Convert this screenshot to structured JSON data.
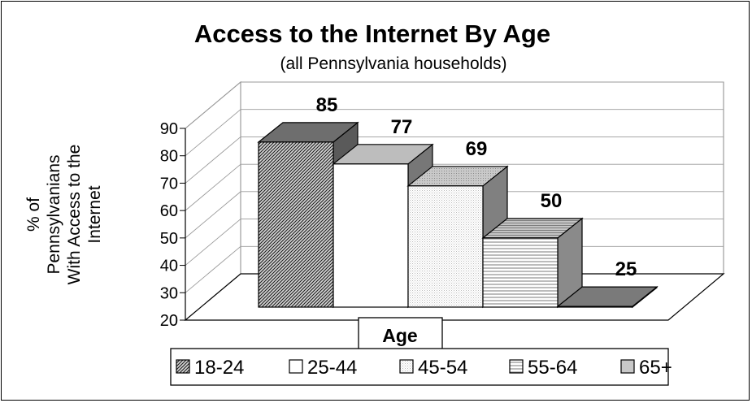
{
  "chart_data": {
    "type": "bar",
    "title": "Access to the Internet By Age",
    "subtitle": "(all Pennsylvania households)",
    "ylabel_lines": [
      "% of",
      "Pennsylvanians",
      "With Access to the",
      "Internet"
    ],
    "xlabel": "Age",
    "ylim": [
      20,
      90
    ],
    "yticks": [
      "20",
      "30",
      "40",
      "50",
      "60",
      "70",
      "80",
      "90"
    ],
    "grid": true,
    "legend_placement": "bottom",
    "series": [
      {
        "name": "18-24",
        "value": 85,
        "label": "85",
        "pattern": "diag",
        "top": "#6e6e6e",
        "side": "#5a5a5a"
      },
      {
        "name": "25-44",
        "value": 77,
        "label": "77",
        "pattern": "white",
        "top": "#bdbdbd",
        "side": "#777777"
      },
      {
        "name": "45-54",
        "value": 69,
        "label": "69",
        "pattern": "fine",
        "top": "#aaaaaa",
        "side": "#808080"
      },
      {
        "name": "55-64",
        "value": 50,
        "label": "50",
        "pattern": "hlines",
        "top": "#b0b0b0",
        "side": "#8a8a8a"
      },
      {
        "name": "65+",
        "value": 25,
        "label": "25",
        "pattern": "gray",
        "top": "#7a7a7a",
        "side": "#505050"
      }
    ]
  }
}
